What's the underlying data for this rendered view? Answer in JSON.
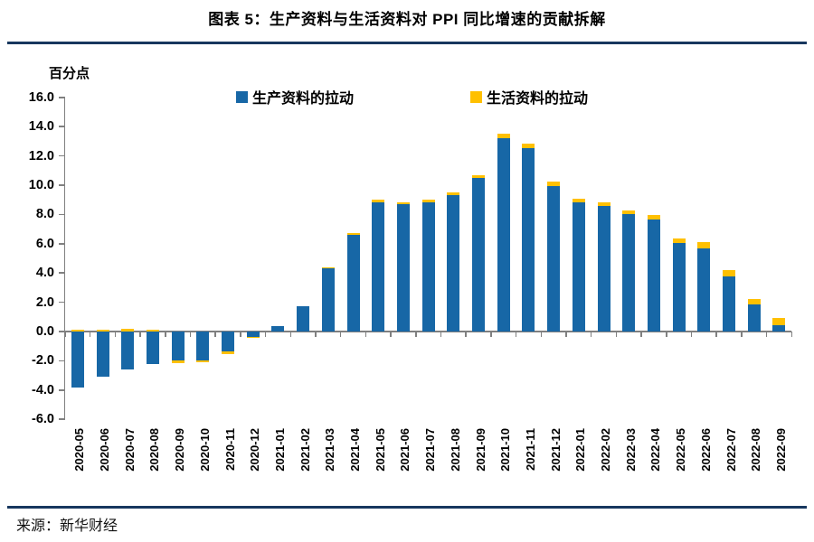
{
  "header": {
    "title": "图表 5：生产资料与生活资料对 PPI 同比增速的贡献拆解"
  },
  "axis": {
    "unit_label": "百分点"
  },
  "colors": {
    "production_blue": "#1767A6",
    "livelihood_yellow": "#FFC000",
    "rule_navy": "#17375E",
    "axis_gray": "#808080"
  },
  "legend": {
    "items": [
      {
        "label": "生产资料的拉动",
        "color": "#1767A6"
      },
      {
        "label": "生活资料的拉动",
        "color": "#FFC000"
      }
    ]
  },
  "footer": {
    "source": "来源：新华财经"
  },
  "chart_data": {
    "type": "bar",
    "stacked": true,
    "title": "图表 5：生产资料与生活资料对 PPI 同比增速的贡献拆解",
    "ylabel": "百分点",
    "xlabel": "",
    "ylim": [
      -6.0,
      16.0
    ],
    "ytick_step": 2.0,
    "ytick_labels": [
      "16.0",
      "14.0",
      "12.0",
      "10.0",
      "8.0",
      "6.0",
      "4.0",
      "2.0",
      "0.0",
      "-2.0",
      "-4.0",
      "-6.0"
    ],
    "grid": false,
    "legend_position": "top-center",
    "categories": [
      "2020-05",
      "2020-06",
      "2020-07",
      "2020-08",
      "2020-09",
      "2020-10",
      "2020-11",
      "2020-12",
      "2021-01",
      "2021-02",
      "2021-03",
      "2021-04",
      "2021-05",
      "2021-06",
      "2021-07",
      "2021-08",
      "2021-09",
      "2021-10",
      "2021-11",
      "2021-12",
      "2022-01",
      "2022-02",
      "2022-03",
      "2022-04",
      "2022-05",
      "2022-06",
      "2022-07",
      "2022-08",
      "2022-09"
    ],
    "series": [
      {
        "name": "生产资料的拉动",
        "color": "#1767A6",
        "values": [
          -3.8,
          -3.1,
          -2.6,
          -2.2,
          -2.0,
          -1.95,
          -1.35,
          -0.35,
          0.4,
          1.7,
          4.35,
          6.6,
          8.85,
          8.7,
          8.85,
          9.35,
          10.5,
          13.2,
          12.55,
          9.95,
          8.8,
          8.55,
          8.0,
          7.65,
          6.05,
          5.65,
          3.75,
          1.85,
          0.45
        ]
      },
      {
        "name": "生活资料的拉动",
        "color": "#FFC000",
        "values": [
          0.1,
          0.15,
          0.2,
          0.15,
          -0.15,
          -0.15,
          -0.2,
          -0.1,
          0.0,
          0.0,
          0.05,
          0.15,
          0.15,
          0.1,
          0.15,
          0.15,
          0.15,
          0.3,
          0.3,
          0.3,
          0.25,
          0.25,
          0.3,
          0.3,
          0.3,
          0.45,
          0.45,
          0.4,
          0.45
        ]
      }
    ]
  }
}
